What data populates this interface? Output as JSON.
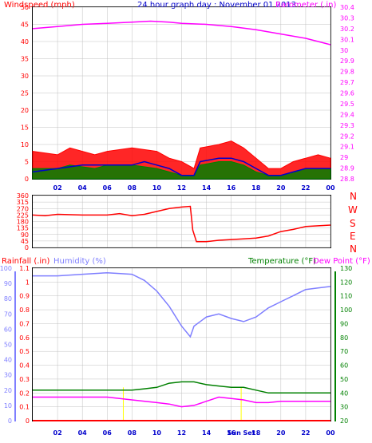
{
  "colors": {
    "wind": "#ff0000",
    "wind_avg": "#0000cc",
    "wind_dark": "#008000",
    "baro": "#ff00ff",
    "dir": "#ff0000",
    "rain": "#ff0000",
    "humidity": "#7f7fff",
    "temp": "#008000",
    "dew": "#ff00ff",
    "title": "#0000cc",
    "axis": "#000000",
    "grid": "#c0c0c0",
    "sun": "#ffff00"
  },
  "top": {
    "title_left": "Windspeed (mph)",
    "title_center": "24 hour graph day : November 01 2013",
    "title_right": "Barometer (.in)"
  },
  "dir": {
    "cardinals": [
      "N",
      "W",
      "S",
      "E",
      "N"
    ]
  },
  "bottom": {
    "title_rain": "Rainfall (.in)",
    "title_humidity": "Humidity (%)",
    "title_temp": "Temperature (°F)",
    "title_dew": "Dew Point (°F)"
  },
  "chart_data": [
    {
      "type": "line",
      "name": "wind-baro",
      "x_ticks": [
        "02",
        "04",
        "06",
        "08",
        "10",
        "12",
        "14",
        "16",
        "18",
        "20",
        "22",
        "00"
      ],
      "y_left": {
        "label": "Windspeed (mph)",
        "range": [
          0,
          50
        ],
        "ticks": [
          0,
          5,
          10,
          15,
          20,
          25,
          30,
          35,
          40,
          45,
          50
        ]
      },
      "y_right": {
        "label": "Barometer (.in)",
        "range": [
          28.8,
          30.4
        ],
        "ticks": [
          "28.8",
          "28.9",
          "29",
          "29.1",
          "29.2",
          "29.3",
          "29.4",
          "29.5",
          "29.6",
          "29.7",
          "29.8",
          "29.9",
          "30",
          "30.1",
          "30.2",
          "30.3",
          "30.4"
        ]
      },
      "series": [
        {
          "name": "Barometer (.in)",
          "axis": "right",
          "points": [
            [
              0,
              30.2
            ],
            [
              2,
              30.22
            ],
            [
              4,
              30.24
            ],
            [
              6,
              30.25
            ],
            [
              8,
              30.26
            ],
            [
              9.5,
              30.27
            ],
            [
              11,
              30.26
            ],
            [
              12,
              30.25
            ],
            [
              14,
              30.24
            ],
            [
              16,
              30.22
            ],
            [
              18,
              30.19
            ],
            [
              20,
              30.15
            ],
            [
              22,
              30.11
            ],
            [
              23,
              30.08
            ],
            [
              24,
              30.05
            ]
          ]
        },
        {
          "name": "Windspeed (mph)",
          "axis": "left",
          "envelope": [
            [
              0,
              8
            ],
            [
              2,
              7
            ],
            [
              3,
              9
            ],
            [
              5,
              7
            ],
            [
              6,
              8
            ],
            [
              8,
              9
            ],
            [
              10,
              8
            ],
            [
              11,
              6
            ],
            [
              12,
              5
            ],
            [
              13,
              3
            ],
            [
              13.5,
              9
            ],
            [
              15,
              10
            ],
            [
              16,
              11
            ],
            [
              17,
              9
            ],
            [
              18,
              6
            ],
            [
              19,
              3
            ],
            [
              20,
              3
            ],
            [
              21,
              5
            ],
            [
              22,
              6
            ],
            [
              23,
              7
            ],
            [
              24,
              6
            ]
          ]
        },
        {
          "name": "average",
          "axis": "left",
          "points": [
            [
              0,
              2
            ],
            [
              2,
              3
            ],
            [
              4,
              4
            ],
            [
              6,
              4
            ],
            [
              8,
              4
            ],
            [
              9,
              5
            ],
            [
              10,
              4
            ],
            [
              11,
              3
            ],
            [
              12,
              1
            ],
            [
              13,
              1
            ],
            [
              13.5,
              5
            ],
            [
              15,
              6
            ],
            [
              16,
              6
            ],
            [
              17,
              5
            ],
            [
              18,
              3
            ],
            [
              19,
              1
            ],
            [
              20,
              1
            ],
            [
              21,
              2
            ],
            [
              22,
              3
            ],
            [
              23,
              3
            ],
            [
              24,
              3
            ]
          ]
        },
        {
          "name": "low",
          "axis": "left",
          "envelope": [
            [
              0,
              3
            ],
            [
              2,
              3
            ],
            [
              3,
              4
            ],
            [
              5,
              3
            ],
            [
              6,
              4
            ],
            [
              8,
              4
            ],
            [
              10,
              3
            ],
            [
              11,
              2
            ],
            [
              12,
              1
            ],
            [
              13,
              1
            ],
            [
              13.5,
              4
            ],
            [
              15,
              5
            ],
            [
              16,
              5
            ],
            [
              17,
              4
            ],
            [
              18,
              2
            ],
            [
              19,
              1
            ],
            [
              20,
              1
            ],
            [
              21,
              2
            ],
            [
              22,
              3
            ],
            [
              23,
              3
            ],
            [
              24,
              3
            ]
          ]
        }
      ]
    },
    {
      "type": "line",
      "name": "wind-direction",
      "x_ticks": [
        "02",
        "04",
        "06",
        "08",
        "10",
        "12",
        "14",
        "16",
        "18",
        "20",
        "22",
        "00"
      ],
      "y": {
        "range": [
          0,
          360
        ],
        "ticks": [
          0,
          45,
          90,
          135,
          180,
          225,
          270,
          315,
          360
        ]
      },
      "series": [
        {
          "name": "direction",
          "points": [
            [
              0,
              225
            ],
            [
              1,
              220
            ],
            [
              2,
              230
            ],
            [
              4,
              225
            ],
            [
              6,
              225
            ],
            [
              7,
              235
            ],
            [
              8,
              220
            ],
            [
              9,
              230
            ],
            [
              10,
              250
            ],
            [
              11,
              270
            ],
            [
              12,
              280
            ],
            [
              12.7,
              285
            ],
            [
              12.9,
              120
            ],
            [
              13.2,
              40
            ],
            [
              14,
              40
            ],
            [
              15,
              50
            ],
            [
              16,
              55
            ],
            [
              17,
              60
            ],
            [
              18,
              65
            ],
            [
              19,
              80
            ],
            [
              20,
              110
            ],
            [
              21,
              125
            ],
            [
              22,
              145
            ],
            [
              23,
              150
            ],
            [
              24,
              155
            ]
          ]
        }
      ]
    },
    {
      "type": "line",
      "name": "humidity-temp-dew",
      "x_ticks": [
        "02",
        "04",
        "06",
        "08",
        "10",
        "12",
        "14",
        "16",
        "18",
        "20",
        "22",
        "00"
      ],
      "y_left_rain": {
        "label": "Rainfall (.in)",
        "range": [
          0,
          1.1
        ],
        "ticks": [
          "0",
          "0.1",
          "0.2",
          "0.3",
          "0.4",
          "0.5",
          "0.6",
          "0.7",
          "0.8",
          "0.9",
          "1",
          "1.1"
        ]
      },
      "y_left_humidity": {
        "label": "Humidity (%)",
        "range": [
          0,
          100
        ],
        "ticks": [
          0,
          10,
          20,
          30,
          40,
          50,
          60,
          70,
          80,
          90,
          100
        ]
      },
      "y_right": {
        "label": "Temperature (°F)",
        "range": [
          20,
          130
        ],
        "ticks": [
          20,
          30,
          40,
          50,
          60,
          70,
          80,
          90,
          100,
          110,
          120,
          130
        ]
      },
      "annotations": [
        "Sun Set"
      ],
      "series": [
        {
          "name": "Humidity (%)",
          "axis": "humidity",
          "points": [
            [
              0,
              95
            ],
            [
              2,
              95
            ],
            [
              4,
              96
            ],
            [
              6,
              97
            ],
            [
              8,
              96
            ],
            [
              9,
              92
            ],
            [
              10,
              85
            ],
            [
              11,
              75
            ],
            [
              12,
              62
            ],
            [
              12.7,
              55
            ],
            [
              13,
              62
            ],
            [
              14,
              68
            ],
            [
              15,
              70
            ],
            [
              16,
              67
            ],
            [
              17,
              65
            ],
            [
              18,
              68
            ],
            [
              19,
              74
            ],
            [
              20,
              78
            ],
            [
              21,
              82
            ],
            [
              22,
              86
            ],
            [
              23,
              87
            ],
            [
              24,
              88
            ]
          ]
        },
        {
          "name": "Temperature (°F)",
          "axis": "temp",
          "points": [
            [
              0,
              42
            ],
            [
              2,
              42
            ],
            [
              4,
              42
            ],
            [
              6,
              42
            ],
            [
              8,
              42
            ],
            [
              9,
              43
            ],
            [
              10,
              44
            ],
            [
              11,
              47
            ],
            [
              12,
              48
            ],
            [
              13,
              48
            ],
            [
              14,
              46
            ],
            [
              15,
              45
            ],
            [
              16,
              44
            ],
            [
              17,
              44
            ],
            [
              18,
              42
            ],
            [
              19,
              40
            ],
            [
              20,
              40
            ],
            [
              21,
              40
            ],
            [
              22,
              40
            ],
            [
              23,
              40
            ],
            [
              24,
              40
            ]
          ]
        },
        {
          "name": "Dew Point (°F)",
          "axis": "temp",
          "points": [
            [
              0,
              37
            ],
            [
              2,
              37
            ],
            [
              4,
              37
            ],
            [
              6,
              37
            ],
            [
              8,
              35
            ],
            [
              10,
              33
            ],
            [
              11,
              32
            ],
            [
              12,
              30
            ],
            [
              13,
              31
            ],
            [
              14,
              34
            ],
            [
              15,
              37
            ],
            [
              16,
              36
            ],
            [
              17,
              35
            ],
            [
              18,
              33
            ],
            [
              19,
              33
            ],
            [
              20,
              34
            ],
            [
              21,
              34
            ],
            [
              22,
              34
            ],
            [
              23,
              34
            ],
            [
              24,
              34
            ]
          ]
        },
        {
          "name": "Rainfall (.in)",
          "axis": "rain",
          "points": [
            [
              0,
              0
            ],
            [
              24,
              0
            ]
          ]
        }
      ]
    }
  ]
}
